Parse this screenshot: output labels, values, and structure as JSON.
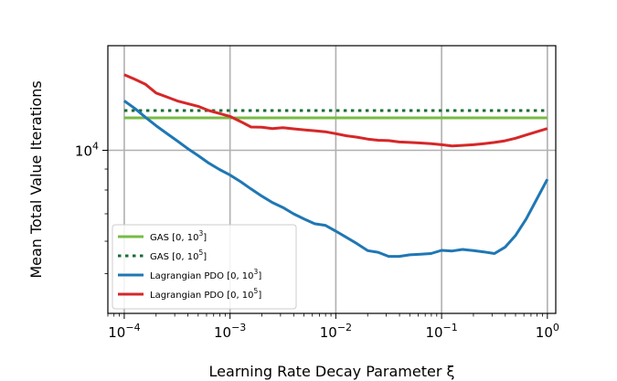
{
  "chart_data": {
    "type": "line",
    "xlabel": "Learning Rate Decay Parameter ξ",
    "ylabel": "Mean Total Value Iterations",
    "x_scale": "log",
    "y_scale": "log",
    "xlim": [
      7e-05,
      1.2
    ],
    "ylim": [
      4000,
      18000
    ],
    "grid": true,
    "legend_position": "lower-left",
    "x_ticks": [
      {
        "value": 0.0001,
        "base": "10",
        "exp": "−4"
      },
      {
        "value": 0.001,
        "base": "10",
        "exp": "−3"
      },
      {
        "value": 0.01,
        "base": "10",
        "exp": "−2"
      },
      {
        "value": 0.1,
        "base": "10",
        "exp": "−1"
      },
      {
        "value": 1,
        "base": "10",
        "exp": "0"
      }
    ],
    "y_ticks": [
      {
        "value": 10000,
        "base": "10",
        "exp": "4"
      }
    ],
    "series": [
      {
        "name": "GAS [0, 10^3]",
        "legend_base": "GAS [0, 10",
        "legend_exp": "3",
        "legend_tail": "]",
        "color": "#77bb44",
        "style": "solid",
        "x": [
          0.0001,
          1
        ],
        "y": [
          12000,
          12000
        ]
      },
      {
        "name": "GAS [0, 10^5]",
        "legend_base": "GAS [0, 10",
        "legend_exp": "5",
        "legend_tail": "]",
        "color": "#1a6b35",
        "style": "dotted",
        "x": [
          0.0001,
          1
        ],
        "y": [
          12500,
          12500
        ]
      },
      {
        "name": "Lagrangian PDO [0, 10^3]",
        "legend_base": "Lagrangian PDO [0, 10",
        "legend_exp": "3",
        "legend_tail": "]",
        "color": "#1f77b4",
        "style": "solid",
        "x": [
          0.0001,
          0.000126,
          0.000158,
          0.0002,
          0.000251,
          0.000316,
          0.000398,
          0.000501,
          0.000631,
          0.000794,
          0.001,
          0.00126,
          0.00158,
          0.002,
          0.00251,
          0.00316,
          0.00398,
          0.00501,
          0.00631,
          0.00794,
          0.01,
          0.0126,
          0.0158,
          0.02,
          0.0251,
          0.0316,
          0.0398,
          0.0501,
          0.0631,
          0.0794,
          0.1,
          0.126,
          0.158,
          0.2,
          0.251,
          0.316,
          0.398,
          0.501,
          0.631,
          0.794,
          1
        ],
        "y": [
          13200,
          12650,
          12050,
          11480,
          11000,
          10550,
          10100,
          9700,
          9300,
          8980,
          8700,
          8380,
          8050,
          7730,
          7460,
          7250,
          7000,
          6800,
          6620,
          6560,
          6350,
          6130,
          5920,
          5690,
          5640,
          5510,
          5510,
          5560,
          5580,
          5600,
          5700,
          5680,
          5730,
          5690,
          5650,
          5600,
          5800,
          6200,
          6800,
          7600,
          8500
        ]
      },
      {
        "name": "Lagrangian PDO [0, 10^5]",
        "legend_base": "Lagrangian PDO [0, 10",
        "legend_exp": "5",
        "legend_tail": "]",
        "color": "#d62728",
        "style": "solid",
        "x": [
          0.0001,
          0.000126,
          0.000158,
          0.0002,
          0.000251,
          0.000316,
          0.000398,
          0.000501,
          0.000631,
          0.000794,
          0.001,
          0.00126,
          0.00158,
          0.002,
          0.00251,
          0.00316,
          0.00398,
          0.00501,
          0.00631,
          0.00794,
          0.01,
          0.0126,
          0.0158,
          0.02,
          0.0251,
          0.0316,
          0.0398,
          0.0501,
          0.0631,
          0.0794,
          0.1,
          0.126,
          0.158,
          0.2,
          0.251,
          0.316,
          0.398,
          0.501,
          0.631,
          0.794,
          1
        ],
        "y": [
          15300,
          14900,
          14500,
          13800,
          13500,
          13200,
          13000,
          12800,
          12500,
          12300,
          12100,
          11750,
          11400,
          11380,
          11300,
          11360,
          11280,
          11220,
          11160,
          11100,
          10980,
          10850,
          10770,
          10650,
          10580,
          10560,
          10480,
          10450,
          10420,
          10380,
          10320,
          10250,
          10280,
          10320,
          10380,
          10450,
          10550,
          10700,
          10900,
          11100,
          11300
        ]
      }
    ]
  }
}
